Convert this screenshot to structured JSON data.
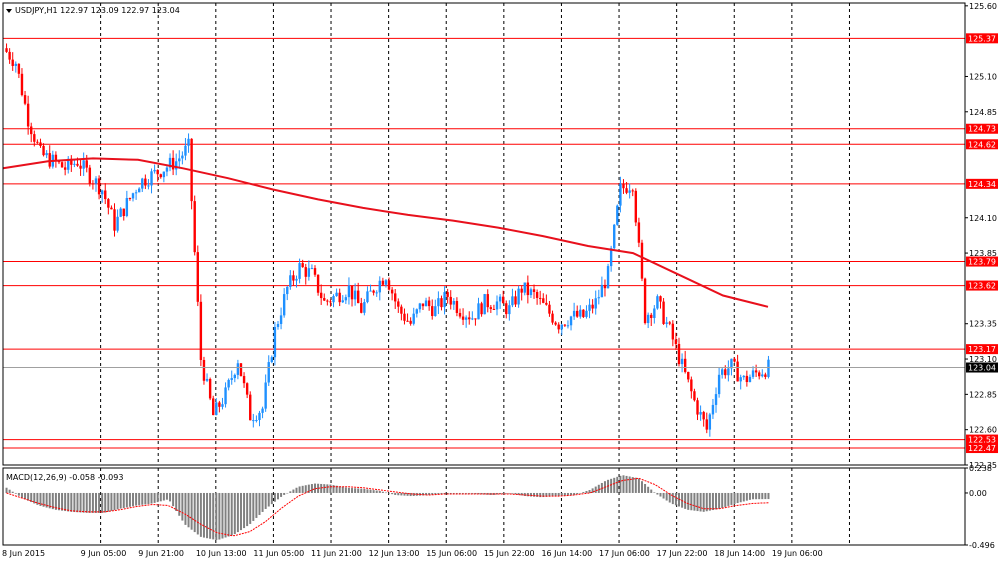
{
  "header": {
    "symbol_line": "USDJPY,H1  122.97 123.09 122.97 123.04",
    "collapse_icon": "triangle-down-icon"
  },
  "price_axis": {
    "ticks": [
      "125.60",
      "125.10",
      "124.85",
      "124.10",
      "123.85",
      "123.35",
      "123.10",
      "122.85",
      "122.60",
      "122.35"
    ],
    "ylim": [
      122.35,
      125.62
    ]
  },
  "levels": {
    "values": [
      125.37,
      124.73,
      124.62,
      124.34,
      123.79,
      123.62,
      123.17,
      122.53,
      122.47
    ],
    "labels": [
      "125.37",
      "124.73",
      "124.62",
      "124.34",
      "123.79",
      "123.62",
      "123.17",
      "122.53",
      "122.47"
    ],
    "line_color": "#ff0000"
  },
  "current_price": {
    "value": 123.04,
    "label": "123.04"
  },
  "x_axis": {
    "labels": [
      "8 Jun 2015",
      "9 Jun 05:00",
      "9 Jun 21:00",
      "10 Jun 13:00",
      "11 Jun 05:00",
      "11 Jun 21:00",
      "12 Jun 13:00",
      "15 Jun 06:00",
      "15 Jun 22:00",
      "16 Jun 14:00",
      "17 Jun 06:00",
      "17 Jun 22:00",
      "18 Jun 14:00",
      "19 Jun 06:00"
    ]
  },
  "macd_panel": {
    "header": "MACD(12,26,9) -0.058 -0.093",
    "ticks": [
      "0.238",
      "0.00",
      "-0.496"
    ],
    "ylim": [
      -0.496,
      0.238
    ]
  },
  "colors": {
    "bull": "#1e90ff",
    "bear": "#ff0000",
    "moving_average": "#e8101c",
    "grid": "#000000",
    "macd_histogram": "#808080",
    "macd_signal": "#ff0000",
    "current_tag": "#000000"
  },
  "chart_data": [
    {
      "type": "candlestick",
      "title": "USDJPY,H1",
      "ylim": [
        122.35,
        125.62
      ],
      "series": [
        {
          "name": "USDJPY",
          "close_path": [
            125.3,
            125.2,
            124.8,
            124.55,
            124.5,
            124.45,
            124.5,
            124.4,
            124.3,
            124.05,
            124.2,
            124.35,
            124.4,
            124.45,
            124.5,
            124.6,
            123.1,
            122.7,
            122.85,
            123.1,
            122.7,
            122.75,
            123.3,
            123.6,
            123.75,
            123.7,
            123.5,
            123.55,
            123.6,
            123.45,
            123.6,
            123.7,
            123.45,
            123.35,
            123.5,
            123.45,
            123.55,
            123.45,
            123.4,
            123.5,
            123.5,
            123.45,
            123.6,
            123.55,
            123.45,
            123.35,
            123.4,
            123.4,
            123.5,
            123.7,
            124.3,
            124.35,
            123.4,
            123.5,
            123.3,
            123.05,
            122.8,
            122.6,
            123.0,
            123.05,
            122.95,
            123.0,
            123.04
          ]
        },
        {
          "name": "MA",
          "values": [
            124.45,
            124.5,
            124.52,
            124.51,
            124.45,
            124.38,
            124.3,
            124.23,
            124.17,
            124.12,
            124.08,
            124.03,
            123.97,
            123.9,
            123.85,
            123.7,
            123.55,
            123.47
          ]
        }
      ]
    },
    {
      "type": "bar",
      "title": "MACD(12,26,9) -0.058 -0.093",
      "ylim": [
        -0.496,
        0.238
      ],
      "series": [
        {
          "name": "MACD",
          "values": [
            0.05,
            -0.05,
            -0.12,
            -0.16,
            -0.18,
            -0.19,
            -0.19,
            -0.15,
            -0.12,
            -0.1,
            -0.06,
            -0.3,
            -0.42,
            -0.45,
            -0.4,
            -0.3,
            -0.15,
            -0.03,
            0.06,
            0.09,
            0.08,
            0.05,
            0.04,
            0.02,
            -0.02,
            -0.03,
            -0.02,
            -0.01,
            0.0,
            -0.01,
            -0.02,
            0.0,
            -0.03,
            -0.04,
            -0.03,
            -0.02,
            0.03,
            0.12,
            0.17,
            0.14,
            0.0,
            -0.1,
            -0.16,
            -0.18,
            -0.15,
            -0.1,
            -0.06,
            -0.058
          ]
        },
        {
          "name": "Signal",
          "values": [
            0.0,
            -0.05,
            -0.1,
            -0.14,
            -0.17,
            -0.18,
            -0.18,
            -0.16,
            -0.13,
            -0.11,
            -0.12,
            -0.2,
            -0.3,
            -0.38,
            -0.41,
            -0.37,
            -0.27,
            -0.14,
            -0.03,
            0.04,
            0.06,
            0.06,
            0.05,
            0.03,
            0.01,
            -0.01,
            -0.02,
            -0.01,
            -0.01,
            -0.01,
            -0.01,
            -0.01,
            -0.02,
            -0.03,
            -0.03,
            -0.02,
            0.0,
            0.06,
            0.12,
            0.14,
            0.08,
            -0.02,
            -0.1,
            -0.15,
            -0.15,
            -0.12,
            -0.1,
            -0.093
          ]
        }
      ]
    }
  ]
}
